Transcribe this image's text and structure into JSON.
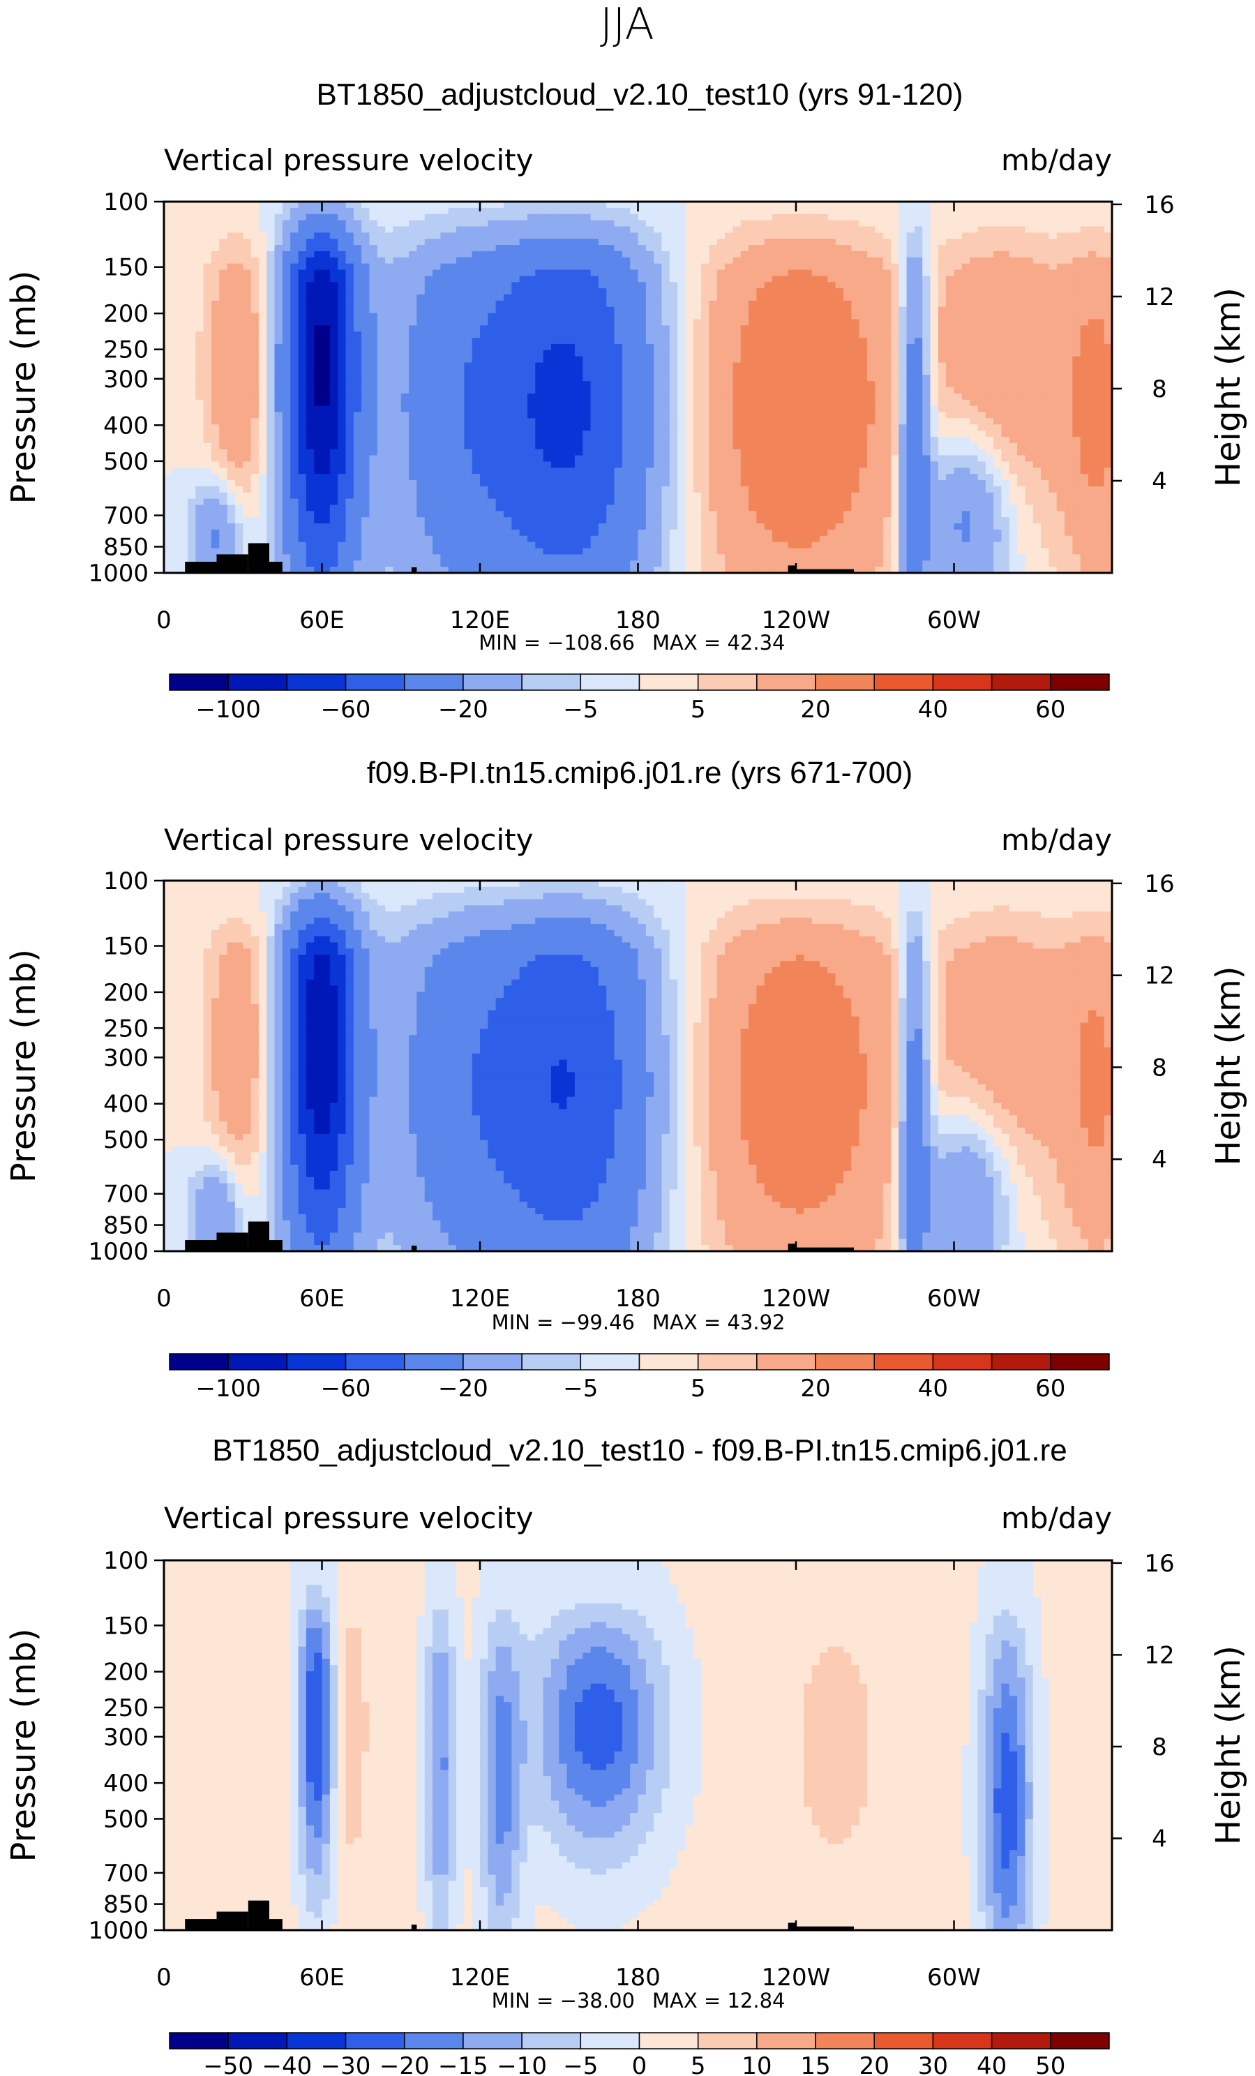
{
  "figure": {
    "season": "JJA"
  },
  "chart_data": [
    {
      "type": "contour",
      "title": "BT1850_adjustcloud_v2.10_test10 (yrs 91-120)",
      "left_string": "Vertical pressure velocity",
      "right_string": "mb/day",
      "ylabel": "Pressure (mb)",
      "ylabel_right": "Height (km)",
      "x_ticks": [
        "0",
        "60E",
        "120E",
        "180",
        "120W",
        "60W"
      ],
      "x_tick_values": [
        0,
        60,
        120,
        180,
        240,
        300
      ],
      "xlim": [
        0,
        360
      ],
      "y_ticks": [
        "100",
        "150",
        "200",
        "250",
        "300",
        "400",
        "500",
        "700",
        "850",
        "1000"
      ],
      "y_tick_values": [
        100,
        150,
        200,
        250,
        300,
        400,
        500,
        700,
        850,
        1000
      ],
      "ylim": [
        1000,
        100
      ],
      "y_right_ticks": [
        "16",
        "12",
        "8",
        "4"
      ],
      "y_right_values": [
        16,
        12,
        8,
        4
      ],
      "min_label": "MIN = −108.66",
      "max_label": "MAX =   42.34",
      "colorbar_labels": [
        "−100",
        "−60",
        "−20",
        "−5",
        "5",
        "20",
        "40",
        "60"
      ],
      "colorbar_label_slots": [
        1,
        3,
        5,
        7,
        9,
        11,
        13,
        15
      ],
      "colorbar_colors": [
        "#00008b",
        "#0018b8",
        "#0a35d6",
        "#2f5fe8",
        "#5b86ec",
        "#8eaaf0",
        "#b8cdf4",
        "#dbe7fa",
        "#fde6d6",
        "#fccbb3",
        "#f8a989",
        "#f28459",
        "#ea5a2e",
        "#d8361a",
        "#b31a0e",
        "#7f0000"
      ],
      "field_scale": 1.0,
      "mountains": [
        [
          8,
          20,
          0.03
        ],
        [
          20,
          32,
          0.05
        ],
        [
          32,
          40,
          0.08
        ],
        [
          40,
          45,
          0.03
        ],
        [
          94,
          96,
          0.015
        ],
        [
          237,
          240,
          0.02
        ],
        [
          240,
          258,
          0.01
        ],
        [
          258,
          262,
          0.01
        ]
      ]
    },
    {
      "type": "contour",
      "title": "f09.B-PI.tn15.cmip6.j01.re (yrs 671-700)",
      "left_string": "Vertical pressure velocity",
      "right_string": "mb/day",
      "ylabel": "Pressure (mb)",
      "ylabel_right": "Height (km)",
      "x_ticks": [
        "0",
        "60E",
        "120E",
        "180",
        "120W",
        "60W"
      ],
      "x_tick_values": [
        0,
        60,
        120,
        180,
        240,
        300
      ],
      "xlim": [
        0,
        360
      ],
      "y_ticks": [
        "100",
        "150",
        "200",
        "250",
        "300",
        "400",
        "500",
        "700",
        "850",
        "1000"
      ],
      "y_tick_values": [
        100,
        150,
        200,
        250,
        300,
        400,
        500,
        700,
        850,
        1000
      ],
      "ylim": [
        1000,
        100
      ],
      "y_right_ticks": [
        "16",
        "12",
        "8",
        "4"
      ],
      "y_right_values": [
        16,
        12,
        8,
        4
      ],
      "min_label": "MIN = −99.46",
      "max_label": "MAX =   43.92",
      "colorbar_labels": [
        "−100",
        "−60",
        "−20",
        "−5",
        "5",
        "20",
        "40",
        "60"
      ],
      "colorbar_label_slots": [
        1,
        3,
        5,
        7,
        9,
        11,
        13,
        15
      ],
      "colorbar_colors": [
        "#00008b",
        "#0018b8",
        "#0a35d6",
        "#2f5fe8",
        "#5b86ec",
        "#8eaaf0",
        "#b8cdf4",
        "#dbe7fa",
        "#fde6d6",
        "#fccbb3",
        "#f8a989",
        "#f28459",
        "#ea5a2e",
        "#d8361a",
        "#b31a0e",
        "#7f0000"
      ],
      "field_scale": 0.93,
      "mountains": [
        [
          8,
          20,
          0.03
        ],
        [
          20,
          32,
          0.05
        ],
        [
          32,
          40,
          0.08
        ],
        [
          40,
          45,
          0.03
        ],
        [
          94,
          96,
          0.015
        ],
        [
          237,
          240,
          0.02
        ],
        [
          240,
          258,
          0.01
        ],
        [
          258,
          262,
          0.01
        ]
      ]
    },
    {
      "type": "contour",
      "title": "BT1850_adjustcloud_v2.10_test10 - f09.B-PI.tn15.cmip6.j01.re",
      "left_string": "Vertical pressure velocity",
      "right_string": "mb/day",
      "ylabel": "Pressure (mb)",
      "ylabel_right": "Height (km)",
      "x_ticks": [
        "0",
        "60E",
        "120E",
        "180",
        "120W",
        "60W"
      ],
      "x_tick_values": [
        0,
        60,
        120,
        180,
        240,
        300
      ],
      "xlim": [
        0,
        360
      ],
      "y_ticks": [
        "100",
        "150",
        "200",
        "250",
        "300",
        "400",
        "500",
        "700",
        "850",
        "1000"
      ],
      "y_tick_values": [
        100,
        150,
        200,
        250,
        300,
        400,
        500,
        700,
        850,
        1000
      ],
      "ylim": [
        1000,
        100
      ],
      "y_right_ticks": [
        "16",
        "12",
        "8",
        "4"
      ],
      "y_right_values": [
        16,
        12,
        8,
        4
      ],
      "min_label": "MIN = −38.00",
      "max_label": "MAX =   12.84",
      "colorbar_labels": [
        "−50",
        "−40",
        "−30",
        "−20",
        "−15",
        "−10",
        "−5",
        "0",
        "5",
        "10",
        "15",
        "20",
        "30",
        "40",
        "50"
      ],
      "colorbar_label_slots": [
        1,
        2,
        3,
        4,
        5,
        6,
        7,
        8,
        9,
        10,
        11,
        12,
        13,
        14,
        15
      ],
      "colorbar_colors": [
        "#00008b",
        "#0018b8",
        "#0a35d6",
        "#2f5fe8",
        "#5b86ec",
        "#8eaaf0",
        "#b8cdf4",
        "#dbe7fa",
        "#fde6d6",
        "#fccbb3",
        "#f8a989",
        "#f28459",
        "#ea5a2e",
        "#d8361a",
        "#b31a0e",
        "#7f0000"
      ],
      "field_scale": 0.35,
      "mountains": [
        [
          8,
          20,
          0.03
        ],
        [
          20,
          32,
          0.05
        ],
        [
          32,
          40,
          0.08
        ],
        [
          40,
          45,
          0.03
        ],
        [
          94,
          96,
          0.015
        ],
        [
          237,
          240,
          0.02
        ],
        [
          240,
          258,
          0.01
        ],
        [
          258,
          262,
          0.01
        ]
      ]
    }
  ]
}
